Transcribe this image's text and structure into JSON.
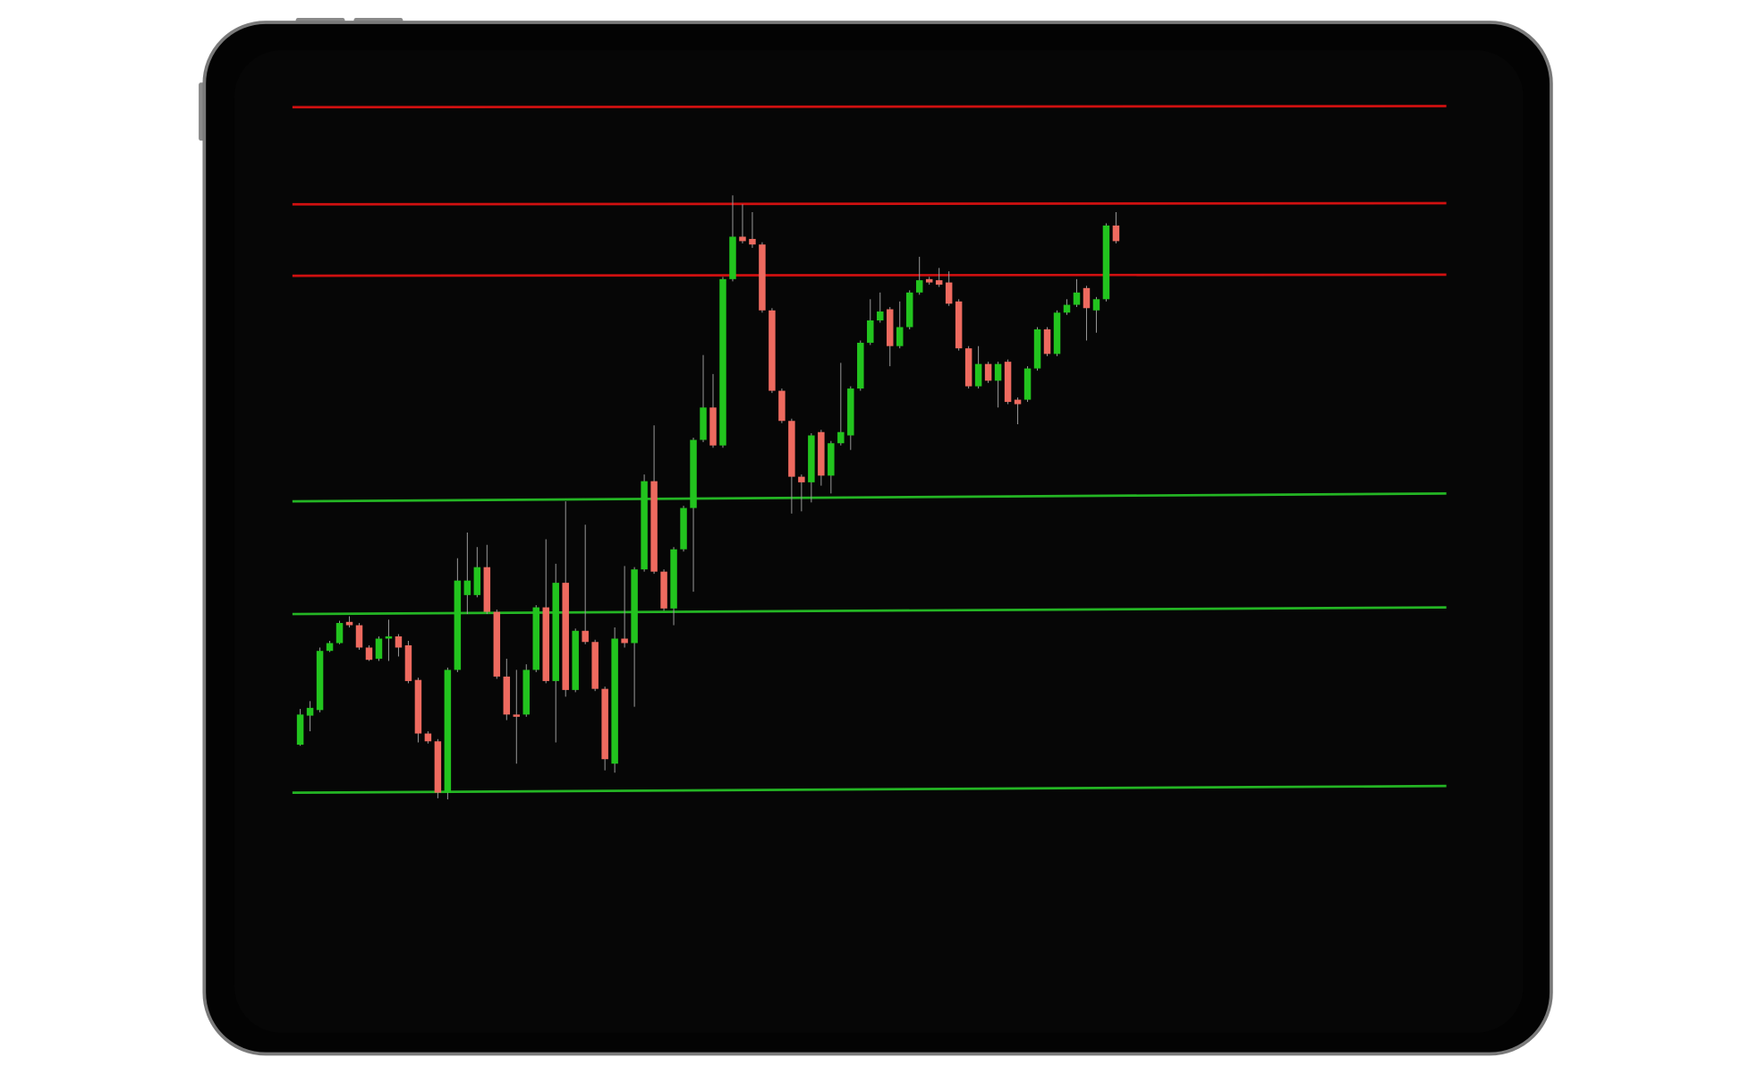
{
  "chart_data": {
    "type": "candlestick",
    "ylim": [
      0,
      700
    ],
    "up_color": "#22c41e",
    "down_color": "#ee6a5f",
    "open": [
      93,
      119,
      124,
      177,
      184,
      203,
      200,
      180,
      170,
      188,
      190,
      182,
      151,
      103,
      96,
      50,
      160,
      227,
      227,
      252,
      212,
      154,
      120,
      120,
      160,
      216,
      150,
      238,
      142,
      195,
      185,
      143,
      76,
      188,
      184,
      250,
      329,
      248,
      215,
      268,
      305,
      366,
      395,
      361,
      510,
      548,
      546,
      541,
      482,
      410,
      383,
      333,
      328,
      373,
      334,
      363,
      370,
      412,
      453,
      473,
      483,
      450,
      467,
      498,
      510,
      509,
      507,
      490,
      448,
      414,
      434,
      419,
      436,
      402,
      402,
      430,
      465,
      443,
      480,
      487,
      502,
      482,
      492,
      558
    ],
    "high": [
      125,
      132,
      180,
      186,
      204,
      208,
      202,
      182,
      190,
      205,
      192,
      186,
      153,
      105,
      98,
      162,
      260,
      283,
      270,
      272,
      214,
      170,
      160,
      165,
      218,
      277,
      255,
      311,
      197,
      290,
      187,
      145,
      198,
      253,
      252,
      335,
      379,
      250,
      270,
      307,
      368,
      442,
      425,
      512,
      585,
      577,
      570,
      543,
      484,
      412,
      385,
      335,
      372,
      375,
      365,
      435,
      414,
      455,
      492,
      498,
      485,
      490,
      500,
      530,
      512,
      520,
      517,
      492,
      450,
      450,
      436,
      436,
      438,
      404,
      432,
      467,
      467,
      482,
      492,
      510,
      504,
      494,
      560,
      570
    ],
    "low": [
      92,
      105,
      122,
      176,
      183,
      198,
      178,
      168,
      168,
      168,
      172,
      148,
      95,
      94,
      45,
      44,
      158,
      210,
      225,
      210,
      152,
      115,
      76,
      118,
      158,
      148,
      95,
      136,
      140,
      183,
      141,
      70,
      68,
      180,
      127,
      248,
      246,
      213,
      200,
      266,
      230,
      364,
      359,
      359,
      508,
      542,
      538,
      480,
      408,
      381,
      300,
      302,
      310,
      325,
      318,
      361,
      357,
      410,
      451,
      471,
      432,
      448,
      465,
      496,
      505,
      503,
      486,
      446,
      412,
      412,
      417,
      395,
      398,
      380,
      400,
      428,
      441,
      441,
      478,
      485,
      455,
      462,
      490,
      542
    ],
    "close": [
      120,
      126,
      177,
      184,
      202,
      200,
      180,
      169,
      188,
      190,
      180,
      150,
      103,
      96,
      50,
      160,
      240,
      240,
      252,
      212,
      154,
      120,
      118,
      160,
      216,
      150,
      238,
      142,
      195,
      185,
      143,
      80,
      188,
      184,
      250,
      329,
      248,
      215,
      268,
      305,
      366,
      395,
      361,
      510,
      548,
      544,
      541,
      482,
      410,
      383,
      333,
      328,
      370,
      334,
      363,
      373,
      412,
      453,
      473,
      481,
      450,
      467,
      498,
      509,
      507,
      505,
      488,
      448,
      414,
      434,
      419,
      434,
      400,
      398,
      430,
      465,
      443,
      480,
      487,
      498,
      484,
      492,
      558,
      544
    ],
    "levels": [
      {
        "color": "#d01010",
        "values": [
          664,
          665
        ]
      },
      {
        "color": "#d01010",
        "values": [
          577,
          578
        ]
      },
      {
        "color": "#d01010",
        "values": [
          513,
          514
        ]
      },
      {
        "color": "#24b524",
        "values": [
          311,
          318
        ]
      },
      {
        "color": "#24b524",
        "values": [
          210,
          216
        ]
      },
      {
        "color": "#24b524",
        "values": [
          50,
          56
        ]
      }
    ]
  }
}
